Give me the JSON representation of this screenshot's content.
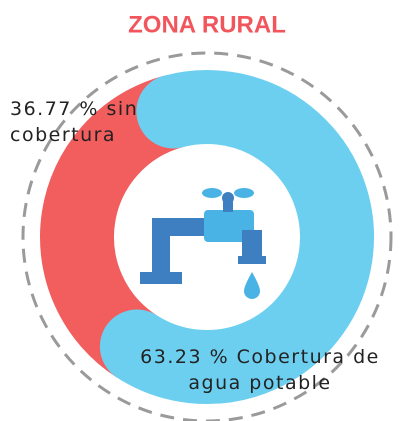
{
  "chart_data": {
    "type": "pie",
    "title": "ZONA RURAL",
    "values": [
      36.77,
      63.23
    ],
    "value_labels": [
      "36.77 % sin cobertura",
      "63.23 % Cobertura de agua potable"
    ],
    "colors": [
      "#f25d5d",
      "#6dcff0"
    ]
  }
}
